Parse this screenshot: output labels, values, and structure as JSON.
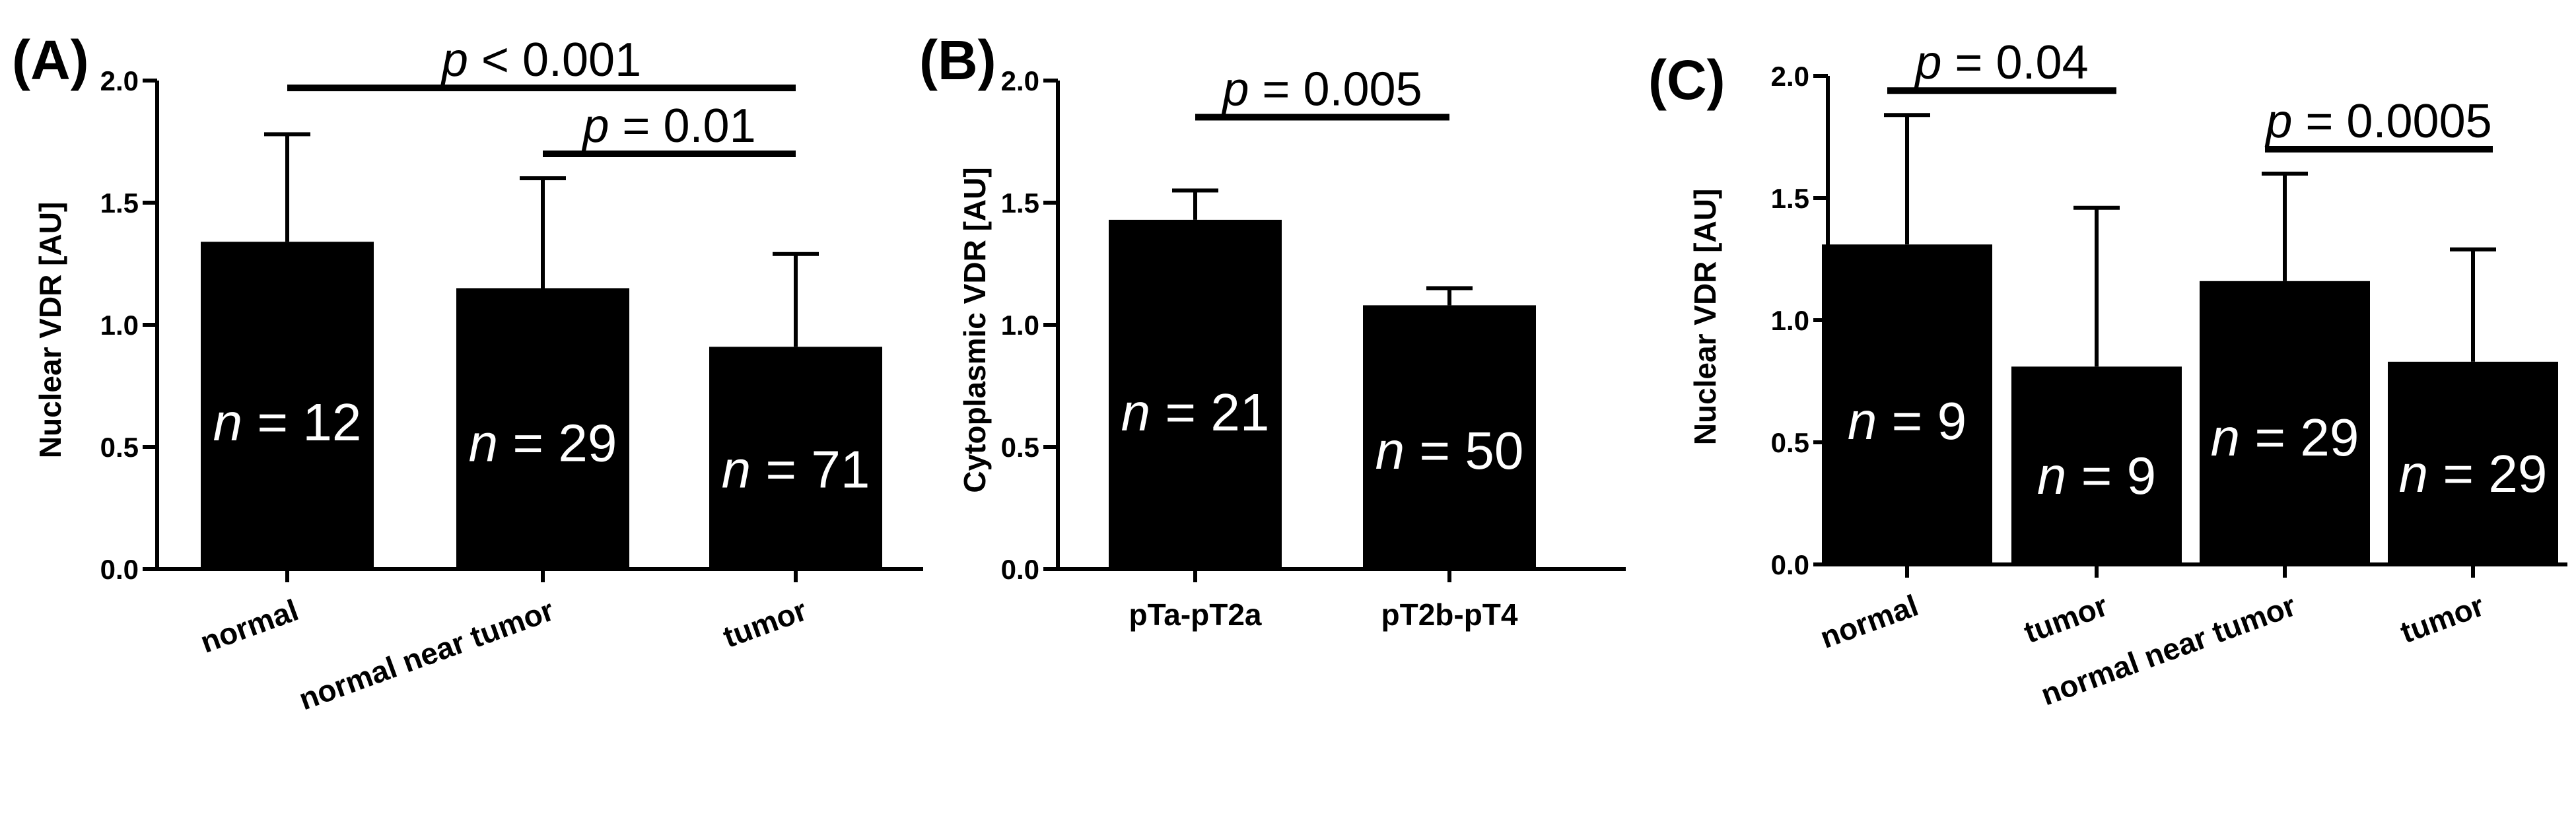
{
  "chart_data": [
    {
      "type": "bar",
      "panel": "(A)",
      "ylabel": "Nuclear VDR [AU]",
      "ylim": [
        0,
        2.0
      ],
      "yticks": [
        "0.0",
        "0.5",
        "1.0",
        "1.5",
        "2.0"
      ],
      "categories": [
        "normal",
        "normal near tumor",
        "tumor"
      ],
      "values": [
        1.34,
        1.15,
        0.91
      ],
      "errors": [
        0.44,
        0.45,
        0.38
      ],
      "n_labels": [
        "12",
        "29",
        "71"
      ],
      "comparisons": [
        {
          "from": 0,
          "to": 2,
          "label": "< 0.001"
        },
        {
          "from": 1,
          "to": 2,
          "label": "= 0.01"
        }
      ]
    },
    {
      "type": "bar",
      "panel": "(B)",
      "ylabel": "Cytoplasmic VDR [AU]",
      "ylim": [
        0,
        2.0
      ],
      "yticks": [
        "0.0",
        "0.5",
        "1.0",
        "1.5",
        "2.0"
      ],
      "categories": [
        "pTa-pT2a",
        "pT2b-pT4"
      ],
      "values": [
        1.43,
        1.08
      ],
      "errors": [
        0.12,
        0.07
      ],
      "n_labels": [
        "21",
        "50"
      ],
      "comparisons": [
        {
          "from": 0,
          "to": 1,
          "label": "= 0.005"
        }
      ]
    },
    {
      "type": "bar",
      "panel": "(C)",
      "ylabel": "Nuclear VDR [AU]",
      "ylim": [
        0,
        2.0
      ],
      "yticks": [
        "0.0",
        "0.5",
        "1.0",
        "1.5",
        "2.0"
      ],
      "categories": [
        "normal",
        "tumor",
        "normal near tumor",
        "tumor"
      ],
      "values": [
        1.31,
        0.81,
        1.16,
        0.83
      ],
      "errors": [
        0.53,
        0.65,
        0.44,
        0.46
      ],
      "n_labels": [
        "9",
        "9",
        "29",
        "29"
      ],
      "comparisons": [
        {
          "from": 0,
          "to": 1,
          "label": "= 0.04"
        },
        {
          "from": 2,
          "to": 3,
          "label": "= 0.0005"
        }
      ]
    }
  ]
}
